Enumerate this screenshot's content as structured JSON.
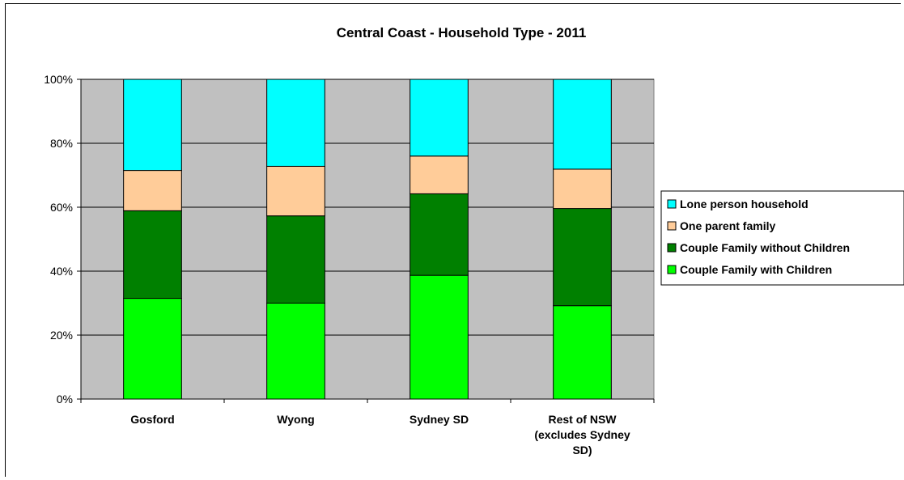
{
  "chart_data": {
    "type": "bar",
    "stacked": true,
    "percent_stacked": true,
    "title": "Central Coast - Household Type - 2011",
    "categories": [
      [
        "Gosford"
      ],
      [
        "Wyong"
      ],
      [
        "Sydney SD"
      ],
      [
        "Rest of NSW",
        "(excludes Sydney",
        "SD)"
      ]
    ],
    "series": [
      {
        "name": "Couple Family with Children",
        "color": "#00ff00",
        "values": [
          31.5,
          30.0,
          38.7,
          29.2
        ]
      },
      {
        "name": "Couple Family without Children",
        "color": "#008000",
        "values": [
          27.4,
          27.3,
          25.5,
          30.4
        ]
      },
      {
        "name": "One parent family",
        "color": "#ffcc99",
        "values": [
          12.6,
          15.5,
          11.8,
          12.3
        ]
      },
      {
        "name": "Lone person household",
        "color": "#00ffff",
        "values": [
          28.5,
          27.2,
          24.0,
          28.1
        ]
      }
    ],
    "yticks": [
      "0%",
      "20%",
      "40%",
      "60%",
      "80%",
      "100%"
    ],
    "ylim": [
      0,
      100
    ],
    "grid": true,
    "plot_background": "#c0c0c0",
    "legend_position": "right",
    "legend_order": [
      "Lone person household",
      "One parent family",
      "Couple Family without Children",
      "Couple Family with Children"
    ]
  }
}
